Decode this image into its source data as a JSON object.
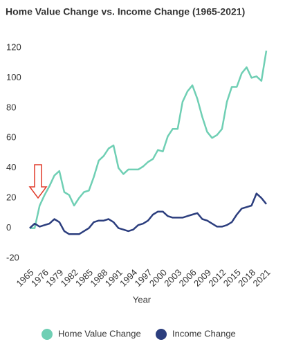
{
  "chart_data": {
    "type": "line",
    "title": "Home Value Change vs. Income Change (1965-2021)",
    "x_label": "Year",
    "categories": [
      "1965",
      null,
      null,
      "1976",
      null,
      null,
      "1979",
      null,
      null,
      "1982",
      null,
      null,
      "1985",
      null,
      null,
      "1988",
      null,
      null,
      "1991",
      null,
      null,
      "1994",
      null,
      null,
      "1997",
      null,
      null,
      "2000",
      null,
      null,
      "2003",
      null,
      null,
      "2006",
      null,
      null,
      "2009",
      null,
      null,
      "2012",
      null,
      null,
      "2015",
      null,
      null,
      "2018",
      null,
      null,
      "2021"
    ],
    "series": [
      {
        "name": "Home Value Change",
        "color": "#6fcfb4",
        "values": [
          0,
          0,
          15,
          22,
          28,
          35,
          38,
          24,
          22,
          15,
          20,
          24,
          25,
          34,
          45,
          48,
          53,
          55,
          40,
          36,
          39,
          39,
          39,
          41,
          44,
          46,
          52,
          51,
          61,
          66,
          66,
          84,
          91,
          95,
          86,
          74,
          64,
          60,
          62,
          66,
          84,
          94,
          94,
          103,
          107,
          100,
          101,
          98,
          118
        ]
      },
      {
        "name": "Income Change",
        "color": "#2c3e7e",
        "values": [
          0,
          3,
          1,
          2,
          3,
          6,
          4,
          -2,
          -4,
          -4,
          -4,
          -2,
          0,
          4,
          5,
          5,
          6,
          4,
          0,
          -1,
          -2,
          -1,
          2,
          3,
          5,
          9,
          11,
          11,
          8,
          7,
          7,
          7,
          8,
          9,
          10,
          6,
          5,
          3,
          1,
          1,
          2,
          4,
          9,
          13,
          14,
          15,
          23,
          20,
          16
        ]
      }
    ],
    "ylim": [
      -20,
      120
    ],
    "yticks": [
      -20,
      0,
      20,
      40,
      60,
      80,
      100,
      120
    ],
    "grid": false,
    "legend": "bottom"
  }
}
